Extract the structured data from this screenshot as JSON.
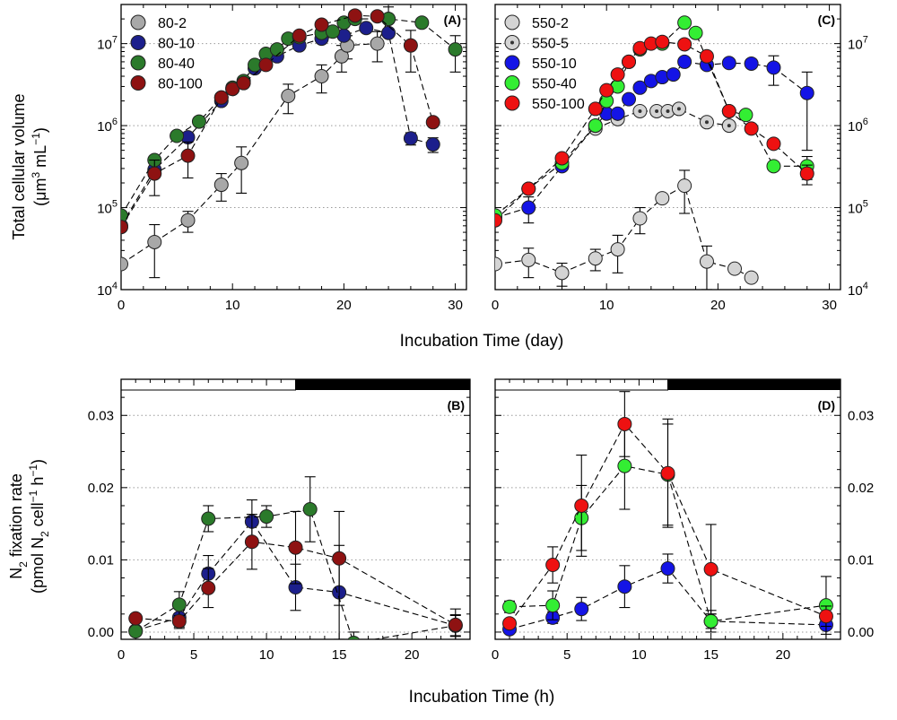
{
  "figure": {
    "xlabel_top": "Incubation Time (day)",
    "xlabel_bottom": "Incubation Time (h)",
    "ylabel_top": {
      "line1": "Total cellular volume",
      "line2_pre": "(μm",
      "line2_sup1": "3",
      "line2_mid": " mL",
      "line2_sup2": "−1",
      "line2_post": ")"
    },
    "ylabel_bottom": {
      "line1_pre": "N",
      "line1_sub": "2",
      "line1_post": " fixation rate",
      "line2_pre": "(pmol N",
      "line2_sub": "2",
      "line2_mid": " cell",
      "line2_sup1": "−1",
      "line2_mid2": " h",
      "line2_sup2": "−1",
      "line2_post": ")"
    }
  },
  "colors": {
    "gray": "#a8a8a8",
    "light_gray": "#d4d4d4",
    "navy": "#1c1f8c",
    "green_dark": "#2b7a2b",
    "red_dark": "#8e1212",
    "blue": "#1414e6",
    "green_bright": "#33ee33",
    "red": "#ee1111"
  },
  "chart_data": [
    {
      "panel": "A",
      "label": "(A)",
      "type": "scatter",
      "y_scale": "log",
      "xlim": [
        0,
        31
      ],
      "ylim": [
        10000,
        30000000
      ],
      "x_ticks": [
        0,
        10,
        20,
        30
      ],
      "y_ticks_left": [
        {
          "exp": "4",
          "value": 10000
        },
        {
          "exp": "5",
          "value": 100000
        },
        {
          "exp": "6",
          "value": 1000000
        },
        {
          "exp": "7",
          "value": 10000000
        }
      ],
      "legend_position": "top-left",
      "series": [
        {
          "name": "80-2",
          "color": "gray",
          "points": [
            [
              0,
              20500,
              null
            ],
            [
              3,
              38000,
              24000
            ],
            [
              6,
              70000,
              20000
            ],
            [
              9,
              190000,
              70000
            ],
            [
              10.8,
              350000,
              200000
            ],
            [
              15,
              2300000,
              900000
            ],
            [
              18,
              4000000,
              1500000
            ],
            [
              19.8,
              7000000,
              2500000
            ],
            [
              20.3,
              9500000,
              3000000
            ],
            [
              23,
              10000000,
              4000000
            ],
            [
              24,
              20000000,
              8000000
            ]
          ]
        },
        {
          "name": "80-10",
          "color": "navy",
          "points": [
            [
              0,
              60000,
              null
            ],
            [
              3,
              290000,
              null
            ],
            [
              6,
              720000,
              null
            ],
            [
              9,
              2000000,
              null
            ],
            [
              10,
              2800000,
              null
            ],
            [
              12,
              5000000,
              null
            ],
            [
              14,
              7000000,
              null
            ],
            [
              16,
              9500000,
              null
            ],
            [
              18,
              11500000,
              null
            ],
            [
              20,
              12500000,
              null
            ],
            [
              22,
              15500000,
              null
            ],
            [
              24,
              13500000,
              null
            ],
            [
              26,
              700000,
              120000
            ],
            [
              28,
              590000,
              120000
            ]
          ]
        },
        {
          "name": "80-40",
          "color": "green_dark",
          "points": [
            [
              0,
              80000,
              null
            ],
            [
              3,
              380000,
              null
            ],
            [
              5,
              750000,
              null
            ],
            [
              7,
              1120000,
              null
            ],
            [
              9,
              2200000,
              null
            ],
            [
              10,
              2900000,
              null
            ],
            [
              11,
              3500000,
              null
            ],
            [
              12,
              5500000,
              null
            ],
            [
              13,
              7500000,
              null
            ],
            [
              14,
              8500000,
              null
            ],
            [
              15,
              11500000,
              null
            ],
            [
              16,
              12000000,
              null
            ],
            [
              18,
              13500000,
              null
            ],
            [
              19,
              14000000,
              null
            ],
            [
              20,
              18000000,
              null
            ],
            [
              21,
              20000000,
              null
            ],
            [
              24,
              20000000,
              null
            ],
            [
              27,
              18000000,
              null
            ],
            [
              30,
              8500000,
              4000000
            ]
          ]
        },
        {
          "name": "80-100",
          "color": "red_dark",
          "points": [
            [
              0,
              58000,
              null
            ],
            [
              3,
              260000,
              120000
            ],
            [
              6,
              430000,
              200000
            ],
            [
              9,
              2200000,
              null
            ],
            [
              10,
              2800000,
              null
            ],
            [
              11,
              3300000,
              null
            ],
            [
              13,
              5500000,
              null
            ],
            [
              16,
              12500000,
              null
            ],
            [
              18,
              17000000,
              null
            ],
            [
              21,
              22000000,
              null
            ],
            [
              23,
              21500000,
              null
            ],
            [
              26,
              9500000,
              5000000
            ],
            [
              28,
              1100000,
              null
            ]
          ]
        }
      ]
    },
    {
      "panel": "C",
      "label": "(C)",
      "type": "scatter",
      "y_scale": "log",
      "xlim": [
        0,
        31
      ],
      "ylim": [
        10000,
        30000000
      ],
      "x_ticks": [
        0,
        10,
        20,
        30
      ],
      "y_ticks_right": [
        {
          "exp": "4",
          "value": 10000
        },
        {
          "exp": "5",
          "value": 100000
        },
        {
          "exp": "6",
          "value": 1000000
        },
        {
          "exp": "7",
          "value": 10000000
        }
      ],
      "legend_position": "top-left",
      "series": [
        {
          "name": "550-2",
          "color": "light_gray",
          "dotted": false,
          "points": [
            [
              0,
              20500,
              null
            ],
            [
              3,
              23000,
              9000
            ],
            [
              6,
              16000,
              5000
            ],
            [
              9,
              24000,
              7000
            ],
            [
              11,
              31000,
              15000
            ],
            [
              13,
              74000,
              26000
            ],
            [
              15,
              130000,
              null
            ],
            [
              17,
              185000,
              100000
            ],
            [
              19,
              22000,
              12000
            ],
            [
              21.5,
              18000,
              null
            ],
            [
              23,
              14000,
              null
            ]
          ]
        },
        {
          "name": "550-5",
          "color": "light_gray",
          "dotted": true,
          "points": [
            [
              9,
              920000,
              null
            ],
            [
              11,
              1200000,
              null
            ],
            [
              13,
              1500000,
              null
            ],
            [
              14.5,
              1500000,
              null
            ],
            [
              15.5,
              1500000,
              null
            ],
            [
              16.5,
              1600000,
              null
            ],
            [
              19,
              1100000,
              null
            ],
            [
              21,
              1000000,
              null
            ]
          ]
        },
        {
          "name": "550-10",
          "color": "blue",
          "points": [
            [
              0,
              75000,
              null
            ],
            [
              3,
              100000,
              35000
            ],
            [
              6,
              320000,
              null
            ],
            [
              9,
              1000000,
              null
            ],
            [
              10,
              1400000,
              null
            ],
            [
              11,
              1400000,
              null
            ],
            [
              12,
              2100000,
              null
            ],
            [
              13,
              2900000,
              null
            ],
            [
              14,
              3500000,
              null
            ],
            [
              15,
              3900000,
              null
            ],
            [
              16,
              4200000,
              null
            ],
            [
              17,
              6000000,
              null
            ],
            [
              19,
              5500000,
              null
            ],
            [
              21,
              5800000,
              null
            ],
            [
              23,
              5700000,
              null
            ],
            [
              25,
              5100000,
              2000000
            ],
            [
              28,
              2500000,
              2000000
            ]
          ]
        },
        {
          "name": "550-40",
          "color": "green_bright",
          "points": [
            [
              0,
              80000,
              null
            ],
            [
              3,
              170000,
              null
            ],
            [
              6,
              350000,
              null
            ],
            [
              9,
              1000000,
              null
            ],
            [
              10,
              2000000,
              null
            ],
            [
              11,
              3000000,
              null
            ],
            [
              12,
              6000000,
              null
            ],
            [
              13,
              8500000,
              null
            ],
            [
              15,
              10000000,
              null
            ],
            [
              17,
              18000000,
              null
            ],
            [
              18,
              13500000,
              null
            ],
            [
              21,
              1500000,
              null
            ],
            [
              22.5,
              1350000,
              null
            ],
            [
              25,
              320000,
              null
            ],
            [
              28,
              320000,
              100000
            ]
          ]
        },
        {
          "name": "550-100",
          "color": "red",
          "points": [
            [
              0,
              70000,
              null
            ],
            [
              3,
              170000,
              null
            ],
            [
              6,
              400000,
              null
            ],
            [
              9,
              1600000,
              null
            ],
            [
              10,
              2700000,
              null
            ],
            [
              11,
              4200000,
              null
            ],
            [
              12,
              6000000,
              null
            ],
            [
              13,
              8800000,
              null
            ],
            [
              14,
              10000000,
              null
            ],
            [
              15,
              10500000,
              null
            ],
            [
              17,
              9800000,
              null
            ],
            [
              19,
              7000000,
              null
            ],
            [
              21,
              1500000,
              null
            ],
            [
              23,
              920000,
              null
            ],
            [
              25,
              600000,
              null
            ],
            [
              28,
              260000,
              70000
            ]
          ]
        }
      ]
    },
    {
      "panel": "B",
      "label": "(B)",
      "type": "scatter",
      "xlim": [
        0,
        24
      ],
      "ylim": [
        -0.001,
        0.035
      ],
      "x_ticks": [
        0,
        5,
        10,
        15,
        20
      ],
      "y_ticks_left": [
        "0.00",
        "0.01",
        "0.02",
        "0.03"
      ],
      "light_dark_bar": {
        "light_until": 12
      },
      "series": [
        {
          "name": "80-10",
          "color": "navy",
          "points": [
            [
              1,
              0.0002,
              0.0006
            ],
            [
              4,
              0.002,
              0.0015
            ],
            [
              6,
              0.0081,
              0.0025
            ],
            [
              9,
              0.0153,
              0.003
            ],
            [
              12,
              0.0062,
              0.0032
            ],
            [
              15,
              0.0055,
              0.0065
            ],
            [
              23,
              0.0009,
              0.0014
            ]
          ]
        },
        {
          "name": "80-40",
          "color": "green_dark",
          "points": [
            [
              1,
              0.0001,
              0.0006
            ],
            [
              4,
              0.0038,
              0.0018
            ],
            [
              6,
              0.0157,
              0.0018
            ],
            [
              10,
              0.016,
              0.0015
            ],
            [
              13,
              0.017,
              0.0045
            ],
            [
              16,
              -0.0015,
              0.0015
            ],
            [
              23,
              0.0009,
              0.0015
            ]
          ]
        },
        {
          "name": "80-100",
          "color": "red_dark",
          "points": [
            [
              1,
              0.0019,
              0.0006
            ],
            [
              4,
              0.0015,
              0.0008
            ],
            [
              6,
              0.0061,
              0.0027
            ],
            [
              9,
              0.0125,
              0.0038
            ],
            [
              12,
              0.0117,
              0.005
            ],
            [
              15,
              0.0102,
              0.0065
            ],
            [
              23,
              0.001,
              0.0022
            ]
          ]
        }
      ]
    },
    {
      "panel": "D",
      "label": "(D)",
      "type": "scatter",
      "xlim": [
        0,
        24
      ],
      "ylim": [
        -0.001,
        0.035
      ],
      "x_ticks": [
        0,
        5,
        10,
        15,
        20
      ],
      "y_ticks_right": [
        "0.00",
        "0.01",
        "0.02",
        "0.03"
      ],
      "light_dark_bar": {
        "light_until": 12
      },
      "series": [
        {
          "name": "550-10",
          "color": "blue",
          "points": [
            [
              1,
              0.0004,
              0.0005
            ],
            [
              4,
              0.002,
              0.0008
            ],
            [
              6,
              0.0032,
              0.0016
            ],
            [
              9,
              0.0063,
              0.0029
            ],
            [
              12,
              0.0088,
              0.002
            ],
            [
              15,
              0.0015,
              0.001
            ],
            [
              23,
              0.001,
              0.0022
            ]
          ]
        },
        {
          "name": "550-40",
          "color": "green_bright",
          "points": [
            [
              1,
              0.0035,
              0.0008
            ],
            [
              4,
              0.0037,
              0.002
            ],
            [
              6,
              0.0158,
              0.0045
            ],
            [
              9,
              0.023,
              0.006
            ],
            [
              12,
              0.0218,
              0.007
            ],
            [
              15,
              0.0015,
              0.0015
            ],
            [
              23,
              0.0037,
              0.004
            ]
          ]
        },
        {
          "name": "550-100",
          "color": "red",
          "points": [
            [
              1,
              0.0012,
              0.0004
            ],
            [
              4,
              0.0093,
              0.0025
            ],
            [
              6,
              0.0175,
              0.007
            ],
            [
              9,
              0.0288,
              0.0045
            ],
            [
              12,
              0.022,
              0.0075
            ],
            [
              15,
              0.0087,
              0.0062
            ],
            [
              23,
              0.0022,
              0.0014
            ]
          ]
        }
      ]
    }
  ]
}
